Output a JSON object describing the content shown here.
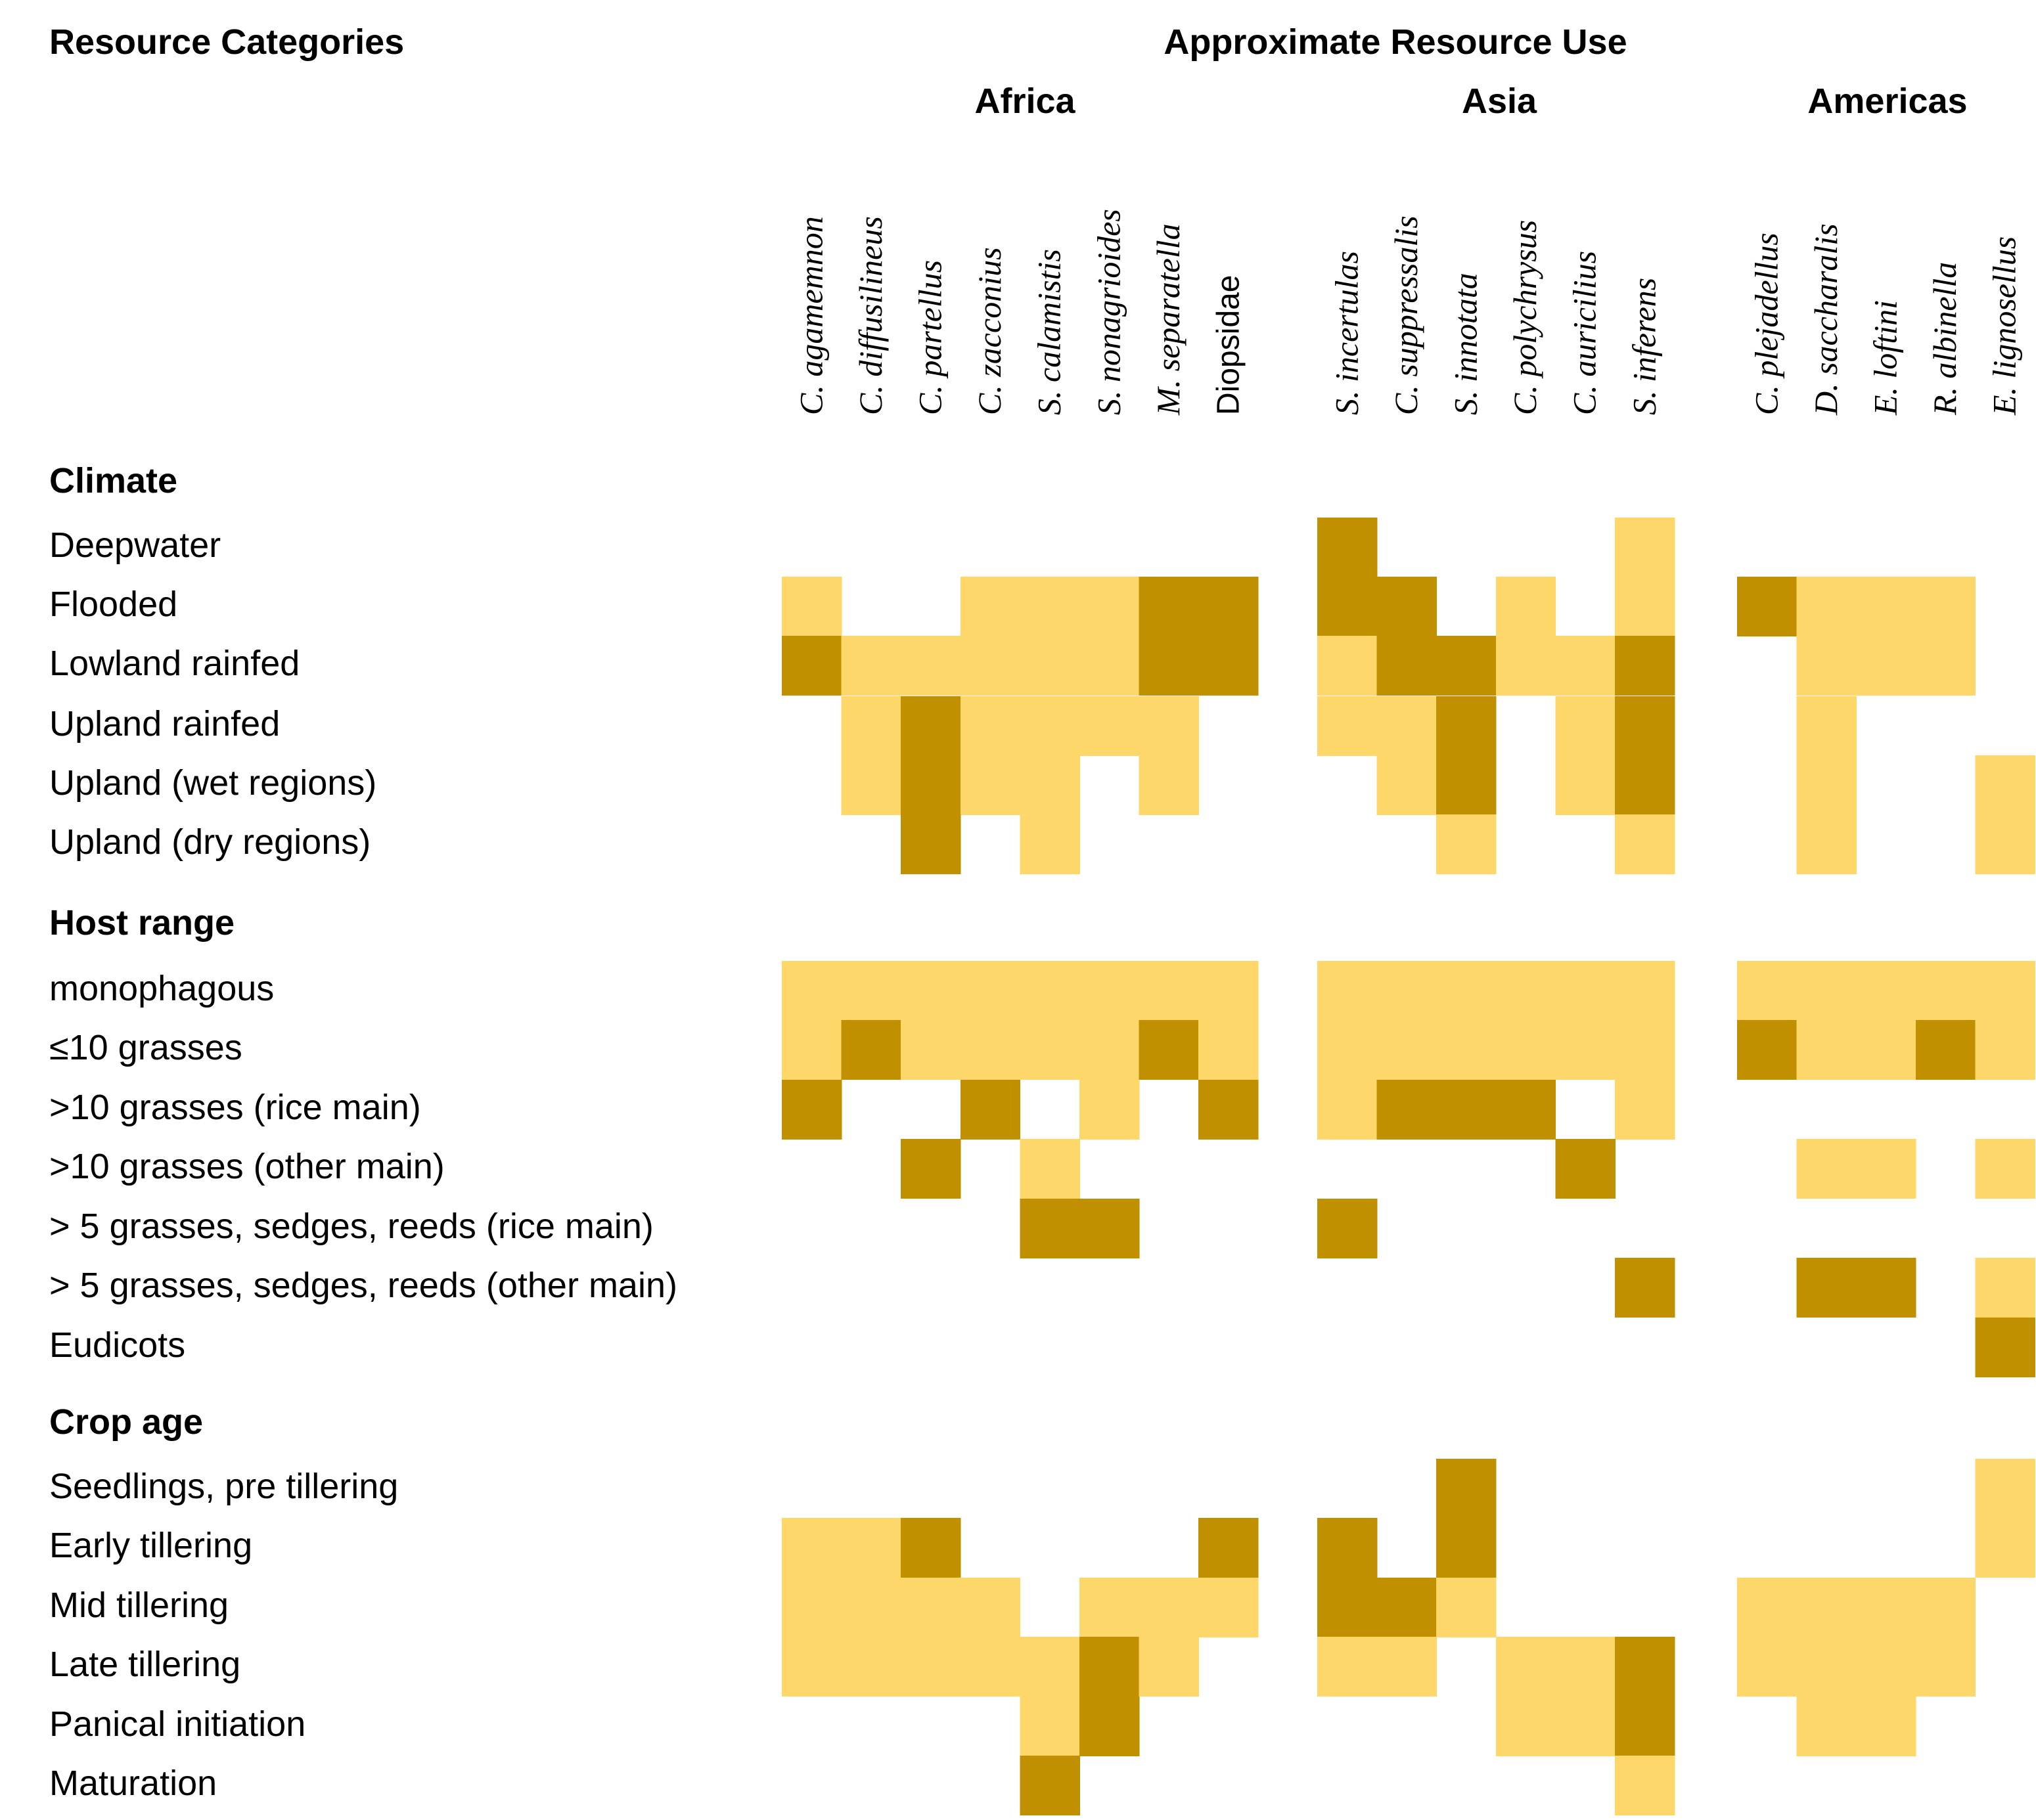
{
  "chart_data": {
    "type": "heatmap",
    "header_left": "Resource Categories",
    "header_right": "Approximate Resource Use",
    "colors": {
      "light": "#FDD76A",
      "dark": "#C09000",
      "empty": "#FFFFFF"
    },
    "levels": {
      "0": "none",
      "1": "light",
      "2": "dark"
    },
    "regions": [
      {
        "name": "Africa",
        "species": [
          {
            "name": "C. agamemnon",
            "italic": true
          },
          {
            "name": "C. diffusilineus",
            "italic": true
          },
          {
            "name": "C. partellus",
            "italic": true
          },
          {
            "name": "C. zacconius",
            "italic": true
          },
          {
            "name": "S. calamistis",
            "italic": true
          },
          {
            "name": "S. nonagrioides",
            "italic": true
          },
          {
            "name": "M. separatella",
            "italic": true
          },
          {
            "name": "Diopsidae",
            "italic": false
          }
        ]
      },
      {
        "name": "Asia",
        "species": [
          {
            "name": "S. incertulas",
            "italic": true
          },
          {
            "name": "C. suppressalis",
            "italic": true
          },
          {
            "name": "S. innotata",
            "italic": true
          },
          {
            "name": "C. polychrysus",
            "italic": true
          },
          {
            "name": "C. auricilius",
            "italic": true
          },
          {
            "name": "S. inferens",
            "italic": true
          }
        ]
      },
      {
        "name": "Americas",
        "species": [
          {
            "name": "C. plejadellus",
            "italic": true
          },
          {
            "name": "D. saccharalis",
            "italic": true
          },
          {
            "name": "E. loftini",
            "italic": true
          },
          {
            "name": "R. albinella",
            "italic": true
          },
          {
            "name": "E. lignosellus",
            "italic": true
          }
        ]
      }
    ],
    "groups": [
      {
        "name": "Climate",
        "rows": [
          {
            "label": "Deepwater",
            "values": [
              0,
              0,
              0,
              0,
              0,
              0,
              0,
              0,
              2,
              0,
              0,
              0,
              0,
              1,
              0,
              0,
              0,
              0,
              0
            ]
          },
          {
            "label": "Flooded",
            "values": [
              1,
              0,
              0,
              1,
              1,
              1,
              2,
              2,
              2,
              2,
              0,
              1,
              0,
              1,
              2,
              1,
              1,
              1,
              0
            ]
          },
          {
            "label": "Lowland rainfed",
            "values": [
              2,
              1,
              1,
              1,
              1,
              1,
              2,
              2,
              1,
              2,
              2,
              1,
              1,
              2,
              0,
              1,
              1,
              1,
              0
            ]
          },
          {
            "label": "Upland rainfed",
            "values": [
              0,
              1,
              2,
              1,
              1,
              1,
              1,
              0,
              1,
              1,
              2,
              0,
              1,
              2,
              0,
              1,
              0,
              0,
              0
            ]
          },
          {
            "label": "Upland  (wet regions)",
            "values": [
              0,
              1,
              2,
              1,
              1,
              0,
              1,
              0,
              0,
              1,
              2,
              0,
              1,
              2,
              0,
              1,
              0,
              0,
              1
            ]
          },
          {
            "label": "Upland (dry regions)",
            "values": [
              0,
              0,
              2,
              0,
              1,
              0,
              0,
              0,
              0,
              0,
              1,
              0,
              0,
              1,
              0,
              1,
              0,
              0,
              1
            ]
          }
        ]
      },
      {
        "name": "Host range",
        "rows": [
          {
            "label": "monophagous",
            "values": [
              1,
              1,
              1,
              1,
              1,
              1,
              1,
              1,
              1,
              1,
              1,
              1,
              1,
              1,
              1,
              1,
              1,
              1,
              1
            ]
          },
          {
            "label": "≤10 grasses",
            "values": [
              1,
              2,
              1,
              1,
              1,
              1,
              2,
              1,
              1,
              1,
              1,
              1,
              1,
              1,
              2,
              1,
              1,
              2,
              1
            ]
          },
          {
            "label": ">10 grasses (rice main)",
            "values": [
              2,
              0,
              0,
              2,
              0,
              1,
              0,
              2,
              1,
              2,
              2,
              2,
              0,
              1,
              0,
              0,
              0,
              0,
              0
            ]
          },
          {
            "label": ">10 grasses (other main)",
            "values": [
              0,
              0,
              2,
              0,
              1,
              0,
              0,
              0,
              0,
              0,
              0,
              0,
              2,
              0,
              0,
              1,
              1,
              0,
              1
            ]
          },
          {
            "label": "> 5 grasses, sedges, reeds (rice main)",
            "values": [
              0,
              0,
              0,
              0,
              2,
              2,
              0,
              0,
              2,
              0,
              0,
              0,
              0,
              0,
              0,
              0,
              0,
              0,
              0
            ]
          },
          {
            "label": "> 5 grasses, sedges, reeds (other main)",
            "values": [
              0,
              0,
              0,
              0,
              0,
              0,
              0,
              0,
              0,
              0,
              0,
              0,
              0,
              2,
              0,
              2,
              2,
              0,
              1
            ]
          },
          {
            "label": "Eudicots",
            "values": [
              0,
              0,
              0,
              0,
              0,
              0,
              0,
              0,
              0,
              0,
              0,
              0,
              0,
              0,
              0,
              0,
              0,
              0,
              2
            ]
          }
        ]
      },
      {
        "name": "Crop age",
        "rows": [
          {
            "label": "Seedlings, pre tillering",
            "values": [
              0,
              0,
              0,
              0,
              0,
              0,
              0,
              0,
              0,
              0,
              2,
              0,
              0,
              0,
              0,
              0,
              0,
              0,
              1
            ]
          },
          {
            "label": "Early tillering",
            "values": [
              1,
              1,
              2,
              0,
              0,
              0,
              0,
              2,
              2,
              0,
              2,
              0,
              0,
              0,
              0,
              0,
              0,
              0,
              1
            ]
          },
          {
            "label": "Mid tillering",
            "values": [
              1,
              1,
              1,
              1,
              0,
              1,
              1,
              1,
              2,
              2,
              1,
              0,
              0,
              0,
              1,
              1,
              1,
              1,
              0
            ]
          },
          {
            "label": "Late tillering",
            "values": [
              1,
              1,
              1,
              1,
              1,
              2,
              1,
              0,
              1,
              1,
              0,
              1,
              1,
              2,
              1,
              1,
              1,
              1,
              0
            ]
          },
          {
            "label": "Panical initiation",
            "values": [
              0,
              0,
              0,
              0,
              1,
              2,
              0,
              0,
              0,
              0,
              0,
              1,
              1,
              2,
              0,
              1,
              1,
              0,
              0
            ]
          },
          {
            "label": "Maturation",
            "values": [
              0,
              0,
              0,
              0,
              2,
              0,
              0,
              0,
              0,
              0,
              0,
              0,
              0,
              1,
              0,
              0,
              0,
              0,
              0
            ]
          }
        ]
      }
    ]
  }
}
